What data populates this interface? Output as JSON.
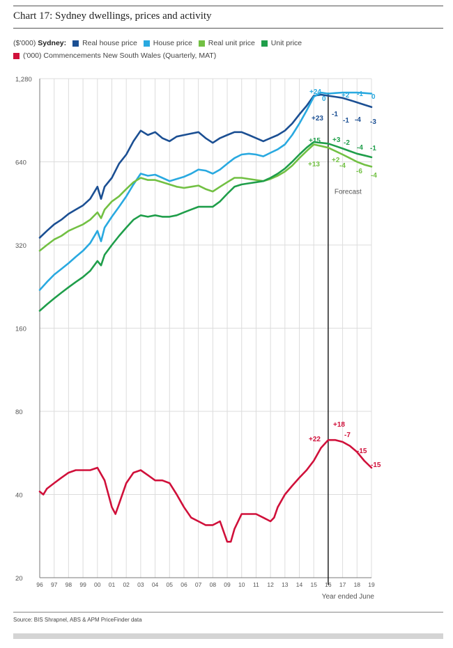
{
  "title": "Chart 17: Sydney dwellings, prices and activity",
  "legend": {
    "row1_prefix": "($'000)",
    "row1_group": "Sydney:",
    "items": [
      {
        "label": "Real house price",
        "color": "#1b4f93"
      },
      {
        "label": "House price",
        "color": "#29a9e0"
      },
      {
        "label": "Real unit price",
        "color": "#72c043"
      },
      {
        "label": "Unit price",
        "color": "#1f9e4a"
      }
    ],
    "row2": {
      "label": "('000) Commencements New South Wales (Quarterly, MAT)",
      "color": "#d0103a"
    }
  },
  "source": "Source: BIS Shrapnel, ABS & APM PriceFinder data",
  "chart_data": {
    "type": "line",
    "yscale": "log",
    "ylim": [
      20,
      1280
    ],
    "yticks": [
      "1,280",
      "640",
      "320",
      "160",
      "80",
      "40",
      "20"
    ],
    "xlim": [
      1996,
      2019
    ],
    "xticks": [
      "96",
      "97",
      "98",
      "99",
      "00",
      "01",
      "02",
      "03",
      "04",
      "05",
      "06",
      "07",
      "08",
      "09",
      "10",
      "11",
      "12",
      "13",
      "14",
      "15",
      "16",
      "17",
      "18",
      "19"
    ],
    "xlabel": "Year ended June",
    "forecast_x": 2016,
    "forecast_label": "Forecast",
    "grid": true,
    "series": [
      {
        "name": "Real house price",
        "color": "#1b4f93",
        "x": [
          1996,
          1996.5,
          1997,
          1997.5,
          1998,
          1998.5,
          1999,
          1999.5,
          2000,
          2000.25,
          2000.5,
          2001,
          2001.5,
          2002,
          2002.5,
          2003,
          2003.5,
          2004,
          2004.5,
          2005,
          2005.5,
          2006,
          2006.5,
          2007,
          2007.5,
          2008,
          2008.5,
          2009,
          2009.5,
          2010,
          2010.5,
          2011,
          2011.5,
          2012,
          2012.5,
          2013,
          2013.5,
          2014,
          2014.5,
          2015,
          2015.5,
          2016,
          2016.5,
          2017,
          2017.5,
          2018,
          2018.5,
          2019
        ],
        "y": [
          340,
          360,
          380,
          395,
          415,
          430,
          445,
          470,
          520,
          470,
          520,
          560,
          630,
          680,
          760,
          830,
          800,
          820,
          780,
          760,
          790,
          800,
          810,
          820,
          780,
          750,
          780,
          800,
          820,
          820,
          800,
          780,
          760,
          780,
          800,
          830,
          880,
          950,
          1020,
          1110,
          1120,
          1110,
          1100,
          1090,
          1070,
          1050,
          1030,
          1010
        ]
      },
      {
        "name": "House price",
        "color": "#29a9e0",
        "x": [
          1996,
          1996.5,
          1997,
          1997.5,
          1998,
          1998.5,
          1999,
          1999.5,
          2000,
          2000.25,
          2000.5,
          2001,
          2001.5,
          2002,
          2002.5,
          2003,
          2003.5,
          2004,
          2004.5,
          2005,
          2005.5,
          2006,
          2006.5,
          2007,
          2007.5,
          2008,
          2008.5,
          2009,
          2009.5,
          2010,
          2010.5,
          2011,
          2011.5,
          2012,
          2012.5,
          2013,
          2013.5,
          2014,
          2014.5,
          2015,
          2015.5,
          2016,
          2016.5,
          2017,
          2017.5,
          2018,
          2018.5,
          2019
        ],
        "y": [
          220,
          235,
          250,
          262,
          275,
          290,
          305,
          325,
          360,
          330,
          370,
          405,
          440,
          480,
          530,
          580,
          570,
          575,
          560,
          545,
          555,
          565,
          580,
          600,
          595,
          580,
          600,
          630,
          660,
          680,
          685,
          680,
          670,
          690,
          710,
          740,
          800,
          880,
          980,
          1100,
          1140,
          1130,
          1135,
          1140,
          1140,
          1140,
          1135,
          1130
        ]
      },
      {
        "name": "Real unit price",
        "color": "#72c043",
        "x": [
          1996,
          1996.5,
          1997,
          1997.5,
          1998,
          1998.5,
          1999,
          1999.5,
          2000,
          2000.25,
          2000.5,
          2001,
          2001.5,
          2002,
          2002.5,
          2003,
          2003.5,
          2004,
          2004.5,
          2005,
          2005.5,
          2006,
          2006.5,
          2007,
          2007.5,
          2008,
          2008.5,
          2009,
          2009.5,
          2010,
          2010.5,
          2011,
          2011.5,
          2012,
          2012.5,
          2013,
          2013.5,
          2014,
          2014.5,
          2015,
          2015.5,
          2016,
          2016.5,
          2017,
          2017.5,
          2018,
          2018.5,
          2019
        ],
        "y": [
          305,
          320,
          335,
          345,
          360,
          370,
          380,
          395,
          420,
          400,
          430,
          460,
          480,
          510,
          540,
          560,
          550,
          550,
          540,
          530,
          520,
          515,
          520,
          525,
          510,
          500,
          520,
          540,
          560,
          560,
          555,
          550,
          545,
          555,
          570,
          590,
          620,
          660,
          700,
          740,
          730,
          720,
          700,
          680,
          660,
          640,
          625,
          615
        ]
      },
      {
        "name": "Unit price",
        "color": "#1f9e4a",
        "x": [
          1996,
          1996.5,
          1997,
          1997.5,
          1998,
          1998.5,
          1999,
          1999.5,
          2000,
          2000.25,
          2000.5,
          2001,
          2001.5,
          2002,
          2002.5,
          2003,
          2003.5,
          2004,
          2004.5,
          2005,
          2005.5,
          2006,
          2006.5,
          2007,
          2007.5,
          2008,
          2008.5,
          2009,
          2009.5,
          2010,
          2010.5,
          2011,
          2011.5,
          2012,
          2012.5,
          2013,
          2013.5,
          2014,
          2014.5,
          2015,
          2015.5,
          2016,
          2016.5,
          2017,
          2017.5,
          2018,
          2018.5,
          2019
        ],
        "y": [
          185,
          195,
          205,
          215,
          225,
          235,
          245,
          258,
          280,
          270,
          295,
          320,
          345,
          370,
          395,
          410,
          405,
          410,
          405,
          405,
          410,
          420,
          430,
          440,
          440,
          440,
          460,
          490,
          520,
          530,
          535,
          540,
          545,
          560,
          580,
          605,
          640,
          680,
          720,
          755,
          750,
          745,
          730,
          715,
          700,
          685,
          675,
          665
        ]
      },
      {
        "name": "('000) Commencements New South Wales (Quarterly, MAT)",
        "color": "#d0103a",
        "x": [
          1996,
          1996.25,
          1996.5,
          1997,
          1997.5,
          1998,
          1998.5,
          1999,
          1999.5,
          2000,
          2000.5,
          2001,
          2001.25,
          2001.5,
          2002,
          2002.5,
          2003,
          2003.5,
          2004,
          2004.5,
          2005,
          2005.5,
          2006,
          2006.5,
          2007,
          2007.5,
          2008,
          2008.5,
          2009,
          2009.25,
          2009.5,
          2010,
          2010.5,
          2011,
          2011.5,
          2012,
          2012.25,
          2012.5,
          2013,
          2013.5,
          2014,
          2014.5,
          2015,
          2015.5,
          2016,
          2016.5,
          2017,
          2017.5,
          2018,
          2018.5,
          2019
        ],
        "y": [
          41,
          40,
          42,
          44,
          46,
          48,
          49,
          49,
          49,
          50,
          45,
          36,
          34,
          37,
          44,
          48,
          49,
          47,
          45,
          45,
          44,
          40,
          36,
          33,
          32,
          31,
          31,
          32,
          27,
          27,
          30,
          34,
          34,
          34,
          33,
          32,
          33,
          36,
          40,
          43,
          46,
          49,
          53,
          59,
          63,
          63,
          62,
          60,
          57,
          53,
          50
        ]
      }
    ],
    "annotations": [
      {
        "text": "+24",
        "color": "#29a9e0"
      },
      {
        "text": "0",
        "color": "#29a9e0"
      },
      {
        "text": "+2",
        "color": "#29a9e0"
      },
      {
        "text": "-1",
        "color": "#29a9e0"
      },
      {
        "text": "0",
        "color": "#29a9e0"
      },
      {
        "text": "+23",
        "color": "#1b4f93"
      },
      {
        "text": "-1",
        "color": "#1b4f93"
      },
      {
        "text": "-1",
        "color": "#1b4f93"
      },
      {
        "text": "-4",
        "color": "#1b4f93"
      },
      {
        "text": "-3",
        "color": "#1b4f93"
      },
      {
        "text": "+15",
        "color": "#1f9e4a"
      },
      {
        "text": "+3",
        "color": "#1f9e4a"
      },
      {
        "text": "-2",
        "color": "#1f9e4a"
      },
      {
        "text": "-4",
        "color": "#1f9e4a"
      },
      {
        "text": "-1",
        "color": "#1f9e4a"
      },
      {
        "text": "+13",
        "color": "#72c043"
      },
      {
        "text": "+2",
        "color": "#72c043"
      },
      {
        "text": "-4",
        "color": "#72c043"
      },
      {
        "text": "-6",
        "color": "#72c043"
      },
      {
        "text": "-4",
        "color": "#72c043"
      },
      {
        "text": "+22",
        "color": "#d0103a"
      },
      {
        "text": "+18",
        "color": "#d0103a"
      },
      {
        "text": "-7",
        "color": "#d0103a"
      },
      {
        "text": "-15",
        "color": "#d0103a"
      },
      {
        "text": "-15",
        "color": "#d0103a"
      }
    ]
  }
}
